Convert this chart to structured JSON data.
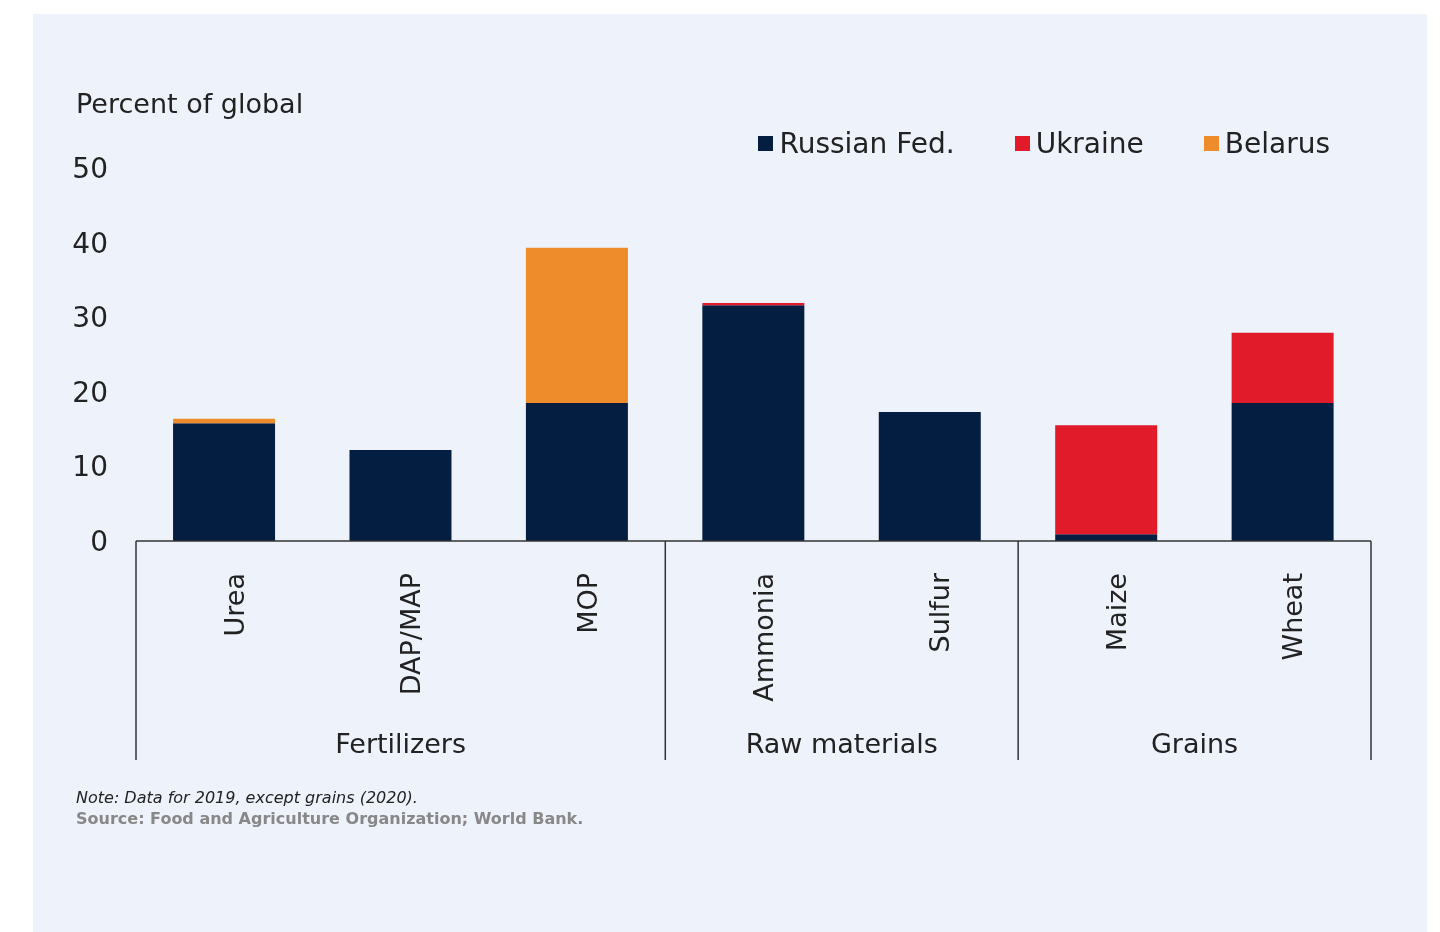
{
  "chart_data": {
    "type": "bar",
    "stacked": true,
    "ylabel": "Percent of global",
    "categories": [
      "Urea",
      "DAP/MAP",
      "MOP",
      "Ammonia",
      "Sulfur",
      "Maize",
      "Wheat"
    ],
    "series": [
      {
        "name": "Russian Fed.",
        "color": "#041e42",
        "values": [
          15.8,
          12.2,
          18.5,
          31.6,
          17.3,
          0.9,
          18.5
        ]
      },
      {
        "name": "Ukraine",
        "color": "#e11b2a",
        "values": [
          null,
          null,
          null,
          0.3,
          null,
          14.6,
          9.4
        ]
      },
      {
        "name": "Belarus",
        "color": "#ee8b2a",
        "values": [
          0.6,
          null,
          20.8,
          null,
          null,
          null,
          null
        ]
      }
    ],
    "ylim": [
      0,
      50
    ],
    "yticks": [
      0,
      10,
      20,
      30,
      40,
      50
    ],
    "grid": false,
    "legend": "top right",
    "annotations": [
      "Fertilizers",
      "Raw materials",
      "Grains",
      "Note: Data for 2019, except grains (2020).",
      "Source: Food and Agriculture Organization; World Bank."
    ]
  }
}
